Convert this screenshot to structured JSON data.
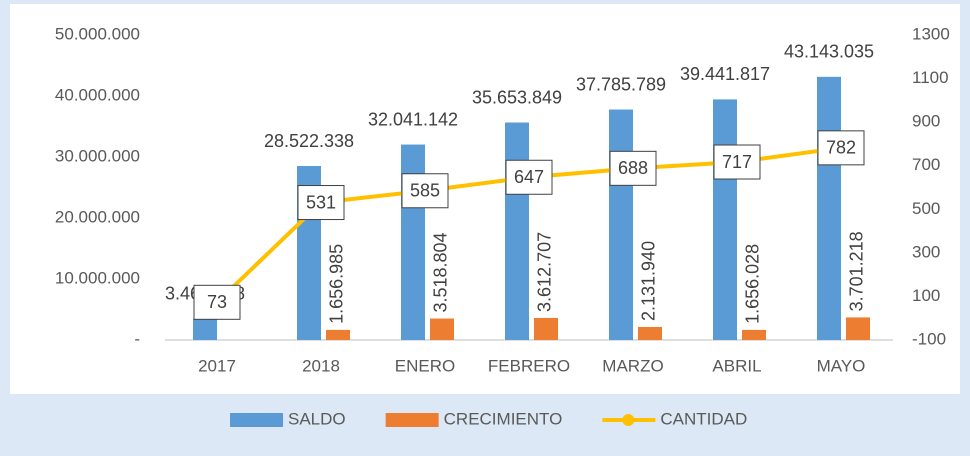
{
  "chart_data": {
    "type": "bar-line",
    "categories": [
      "2017",
      "2018",
      "ENERO",
      "FEBRERO",
      "MARZO",
      "ABRIL",
      "MAYO"
    ],
    "series": [
      {
        "name": "SALDO",
        "color": "#5b9bd5",
        "type": "bar",
        "values": [
          3464588,
          28522338,
          32041142,
          35653849,
          37785789,
          39441817,
          43143035
        ],
        "value_labels": [
          "3.464.588",
          "28.522.338",
          "32.041.142",
          "35.653.849",
          "37.785.789",
          "39.441.817",
          "43.143.035"
        ]
      },
      {
        "name": "CRECIMIENTO",
        "color": "#ed7d31",
        "type": "bar",
        "values": [
          null,
          1656985,
          3518804,
          3612707,
          2131940,
          1656028,
          3701218
        ],
        "value_labels": [
          null,
          "1.656.985",
          "3.518.804",
          "3.612.707",
          "2.131.940",
          "1.656.028",
          "3.701.218"
        ]
      },
      {
        "name": "CANTIDAD",
        "color": "#ffc000",
        "type": "line",
        "axis": "y2",
        "values": [
          73,
          531,
          585,
          647,
          688,
          717,
          782
        ]
      }
    ],
    "ylim": [
      0,
      50000000
    ],
    "yticks": [
      {
        "value": 0,
        "label": "-"
      },
      {
        "value": 10000000,
        "label": "10.000.000"
      },
      {
        "value": 20000000,
        "label": "20.000.000"
      },
      {
        "value": 30000000,
        "label": "30.000.000"
      },
      {
        "value": 40000000,
        "label": "40.000.000"
      },
      {
        "value": 50000000,
        "label": "50.000.000"
      }
    ],
    "y2lim": [
      -100,
      1300
    ],
    "y2ticks": [
      -100,
      100,
      300,
      500,
      700,
      900,
      1100,
      1300
    ],
    "grid": false,
    "legend": "bottom"
  }
}
